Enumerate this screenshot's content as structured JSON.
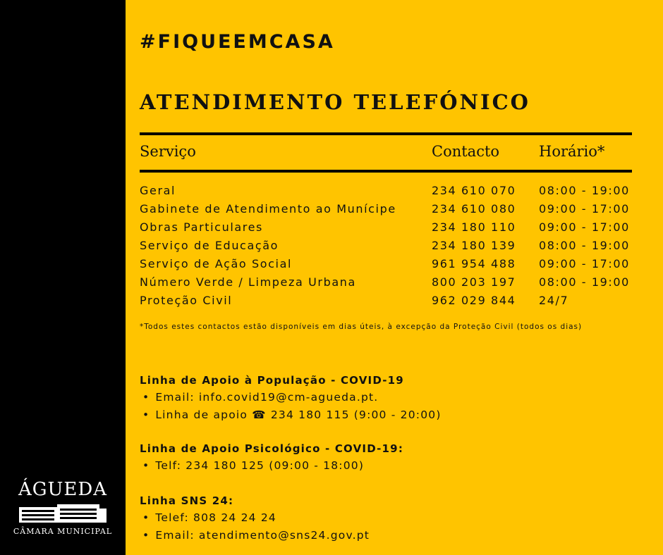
{
  "hashtag": "#FIQUEEMCASA",
  "title": "ATENDIMENTO TELEFÓNICO",
  "table": {
    "headers": [
      "Serviço",
      "Contacto",
      "Horário*"
    ],
    "rows": [
      [
        "Geral",
        "234 610 070",
        "08:00 - 19:00"
      ],
      [
        "Gabinete de Atendimento ao Munícipe",
        "234 610 080",
        "09:00 - 17:00"
      ],
      [
        "Obras Particulares",
        "234 180 110",
        "09:00 - 17:00"
      ],
      [
        "Serviço de Educação",
        "234 180 139",
        "08:00 - 19:00"
      ],
      [
        "Serviço de Ação Social",
        "961 954 488",
        "09:00 - 17:00"
      ],
      [
        "Número Verde / Limpeza Urbana",
        "800 203 197",
        "08:00 - 19:00"
      ],
      [
        "Proteção Civil",
        "962 029 844",
        "24/7"
      ]
    ]
  },
  "note": "*Todos estes contactos estão disponíveis em dias úteis, à excepção da Proteção Civil (todos os dias)",
  "sections": [
    {
      "title": "Linha de Apoio à População -  COVID-19",
      "items": [
        "Email: info.covid19@cm-agueda.pt.",
        "Linha de apoio ☎ 234 180 115 (9:00 - 20:00)"
      ]
    },
    {
      "title": "Linha de Apoio Psicológico - COVID-19:",
      "items": [
        "Telf: 234 180 125 (09:00 - 18:00)"
      ]
    },
    {
      "title": "Linha SNS 24:",
      "items": [
        "Telef: 808 24 24 24",
        "Email: atendimento@sns24.gov.pt"
      ]
    }
  ],
  "logo": {
    "name": "ÁGUEDA",
    "subtitle": "CÂMARA MUNICIPAL"
  },
  "colors": {
    "background": "#FFC400",
    "sidebar": "#000000"
  }
}
